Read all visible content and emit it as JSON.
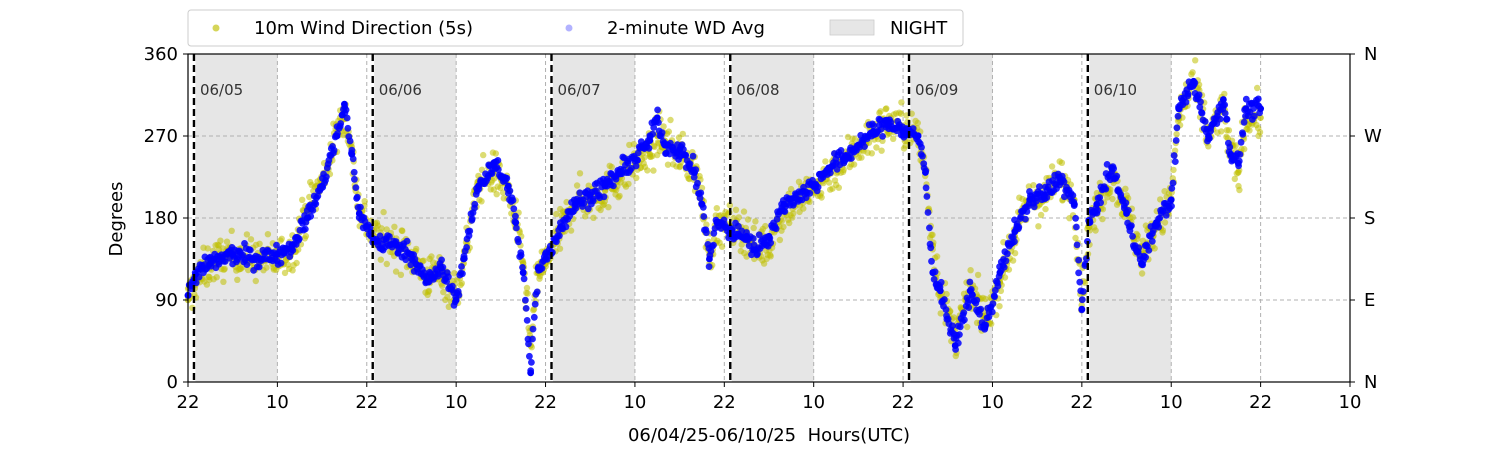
{
  "chart_data": {
    "type": "scatter",
    "title": "",
    "xlabel": "06/04/25-06/10/25  Hours(UTC)",
    "ylabel": "Degrees",
    "ylim": [
      0,
      360
    ],
    "yticks": [
      0,
      90,
      180,
      270,
      360
    ],
    "right_yticks": [
      {
        "value": 0,
        "label": "N"
      },
      {
        "value": 90,
        "label": "E"
      },
      {
        "value": 180,
        "label": "S"
      },
      {
        "value": 270,
        "label": "W"
      },
      {
        "value": 360,
        "label": "N"
      }
    ],
    "x_unit": "hours since 06/04/25 22:00 UTC",
    "xlim": [
      0,
      156
    ],
    "xticks": [
      {
        "hour": 0,
        "label": "22"
      },
      {
        "hour": 12,
        "label": "10"
      },
      {
        "hour": 24,
        "label": "22"
      },
      {
        "hour": 36,
        "label": "10"
      },
      {
        "hour": 48,
        "label": "22"
      },
      {
        "hour": 60,
        "label": "10"
      },
      {
        "hour": 72,
        "label": "22"
      },
      {
        "hour": 84,
        "label": "10"
      },
      {
        "hour": 96,
        "label": "22"
      },
      {
        "hour": 108,
        "label": "10"
      },
      {
        "hour": 120,
        "label": "22"
      },
      {
        "hour": 132,
        "label": "10"
      },
      {
        "hour": 144,
        "label": "22"
      },
      {
        "hour": 156,
        "label": "10"
      }
    ],
    "day_markers": [
      {
        "hour": 0.8,
        "label": "06/05"
      },
      {
        "hour": 24.8,
        "label": "06/06"
      },
      {
        "hour": 48.8,
        "label": "06/07"
      },
      {
        "hour": 72.8,
        "label": "06/08"
      },
      {
        "hour": 96.8,
        "label": "06/09"
      },
      {
        "hour": 120.8,
        "label": "06/10"
      }
    ],
    "night_periods": [
      [
        1,
        12
      ],
      [
        25,
        36
      ],
      [
        49,
        60
      ],
      [
        73,
        84
      ],
      [
        97,
        108
      ],
      [
        121,
        132
      ]
    ],
    "grid": true,
    "legend": {
      "position": "top",
      "entries": [
        {
          "label": "10m Wind Direction (5s)",
          "color": "#bfbf00",
          "kind": "point"
        },
        {
          "label": "2-minute WD Avg",
          "color": "#0000ff",
          "kind": "point"
        },
        {
          "label": "NIGHT",
          "color": "#e6e6e6",
          "kind": "patch"
        }
      ]
    },
    "series": [
      {
        "name": "10m Wind Direction (5s)",
        "color": "#bfbf00",
        "spread": 40,
        "points": [
          [
            0,
            90
          ],
          [
            1,
            110
          ],
          [
            3,
            130
          ],
          [
            6,
            140
          ],
          [
            9,
            135
          ],
          [
            12,
            135
          ],
          [
            14,
            145
          ],
          [
            16,
            190
          ],
          [
            18,
            220
          ],
          [
            20,
            270
          ],
          [
            21,
            300
          ],
          [
            22,
            250
          ],
          [
            23,
            190
          ],
          [
            25,
            160
          ],
          [
            28,
            150
          ],
          [
            30,
            140
          ],
          [
            32,
            115
          ],
          [
            34,
            120
          ],
          [
            36,
            95
          ],
          [
            37,
            130
          ],
          [
            39,
            220
          ],
          [
            41,
            230
          ],
          [
            43,
            210
          ],
          [
            44,
            175
          ],
          [
            45,
            130
          ],
          [
            46,
            40
          ],
          [
            47,
            120
          ],
          [
            48,
            130
          ],
          [
            50,
            165
          ],
          [
            52,
            200
          ],
          [
            54,
            200
          ],
          [
            56,
            210
          ],
          [
            58,
            225
          ],
          [
            60,
            240
          ],
          [
            62,
            250
          ],
          [
            63,
            270
          ],
          [
            64,
            265
          ],
          [
            66,
            250
          ],
          [
            68,
            235
          ],
          [
            69,
            200
          ],
          [
            70,
            140
          ],
          [
            71,
            170
          ],
          [
            73,
            170
          ],
          [
            75,
            165
          ],
          [
            76,
            150
          ],
          [
            78,
            150
          ],
          [
            80,
            190
          ],
          [
            84,
            210
          ],
          [
            86,
            230
          ],
          [
            88,
            240
          ],
          [
            90,
            260
          ],
          [
            92,
            270
          ],
          [
            94,
            285
          ],
          [
            96,
            280
          ],
          [
            98,
            270
          ],
          [
            99,
            230
          ],
          [
            100,
            150
          ],
          [
            101,
            100
          ],
          [
            103,
            50
          ],
          [
            105,
            100
          ],
          [
            107,
            70
          ],
          [
            109,
            110
          ],
          [
            111,
            160
          ],
          [
            113,
            200
          ],
          [
            115,
            200
          ],
          [
            117,
            225
          ],
          [
            119,
            200
          ],
          [
            120,
            90
          ],
          [
            121,
            170
          ],
          [
            122,
            190
          ],
          [
            124,
            230
          ],
          [
            126,
            190
          ],
          [
            128,
            140
          ],
          [
            130,
            170
          ],
          [
            132,
            200
          ],
          [
            133,
            290
          ],
          [
            135,
            330
          ],
          [
            137,
            270
          ],
          [
            139,
            300
          ],
          [
            140,
            250
          ],
          [
            141,
            230
          ],
          [
            142,
            290
          ],
          [
            144,
            290
          ]
        ]
      },
      {
        "name": "2-minute WD Avg",
        "color": "#0000ff",
        "spread": 18,
        "points": [
          [
            0,
            95
          ],
          [
            1,
            118
          ],
          [
            3,
            130
          ],
          [
            6,
            140
          ],
          [
            9,
            135
          ],
          [
            12,
            140
          ],
          [
            14,
            150
          ],
          [
            16,
            180
          ],
          [
            18,
            215
          ],
          [
            20,
            270
          ],
          [
            21,
            305
          ],
          [
            22,
            250
          ],
          [
            23,
            185
          ],
          [
            25,
            155
          ],
          [
            28,
            150
          ],
          [
            30,
            140
          ],
          [
            32,
            110
          ],
          [
            34,
            125
          ],
          [
            36,
            90
          ],
          [
            37,
            135
          ],
          [
            39,
            215
          ],
          [
            41,
            240
          ],
          [
            43,
            215
          ],
          [
            44,
            175
          ],
          [
            45,
            120
          ],
          [
            46,
            10
          ],
          [
            47,
            125
          ],
          [
            48,
            135
          ],
          [
            50,
            170
          ],
          [
            52,
            195
          ],
          [
            54,
            205
          ],
          [
            56,
            215
          ],
          [
            58,
            230
          ],
          [
            60,
            245
          ],
          [
            62,
            265
          ],
          [
            63,
            290
          ],
          [
            64,
            260
          ],
          [
            66,
            255
          ],
          [
            68,
            230
          ],
          [
            69,
            195
          ],
          [
            70,
            135
          ],
          [
            71,
            175
          ],
          [
            73,
            165
          ],
          [
            75,
            160
          ],
          [
            76,
            145
          ],
          [
            78,
            160
          ],
          [
            80,
            195
          ],
          [
            84,
            215
          ],
          [
            86,
            235
          ],
          [
            88,
            245
          ],
          [
            90,
            260
          ],
          [
            92,
            275
          ],
          [
            94,
            285
          ],
          [
            96,
            275
          ],
          [
            98,
            270
          ],
          [
            99,
            230
          ],
          [
            100,
            120
          ],
          [
            101,
            100
          ],
          [
            103,
            40
          ],
          [
            105,
            100
          ],
          [
            107,
            60
          ],
          [
            109,
            120
          ],
          [
            111,
            165
          ],
          [
            113,
            200
          ],
          [
            115,
            205
          ],
          [
            117,
            225
          ],
          [
            119,
            195
          ],
          [
            120,
            80
          ],
          [
            121,
            175
          ],
          [
            122,
            195
          ],
          [
            124,
            235
          ],
          [
            126,
            185
          ],
          [
            128,
            130
          ],
          [
            130,
            175
          ],
          [
            132,
            200
          ],
          [
            133,
            300
          ],
          [
            135,
            330
          ],
          [
            137,
            270
          ],
          [
            139,
            310
          ],
          [
            140,
            250
          ],
          [
            141,
            240
          ],
          [
            142,
            300
          ],
          [
            144,
            300
          ]
        ]
      }
    ]
  }
}
